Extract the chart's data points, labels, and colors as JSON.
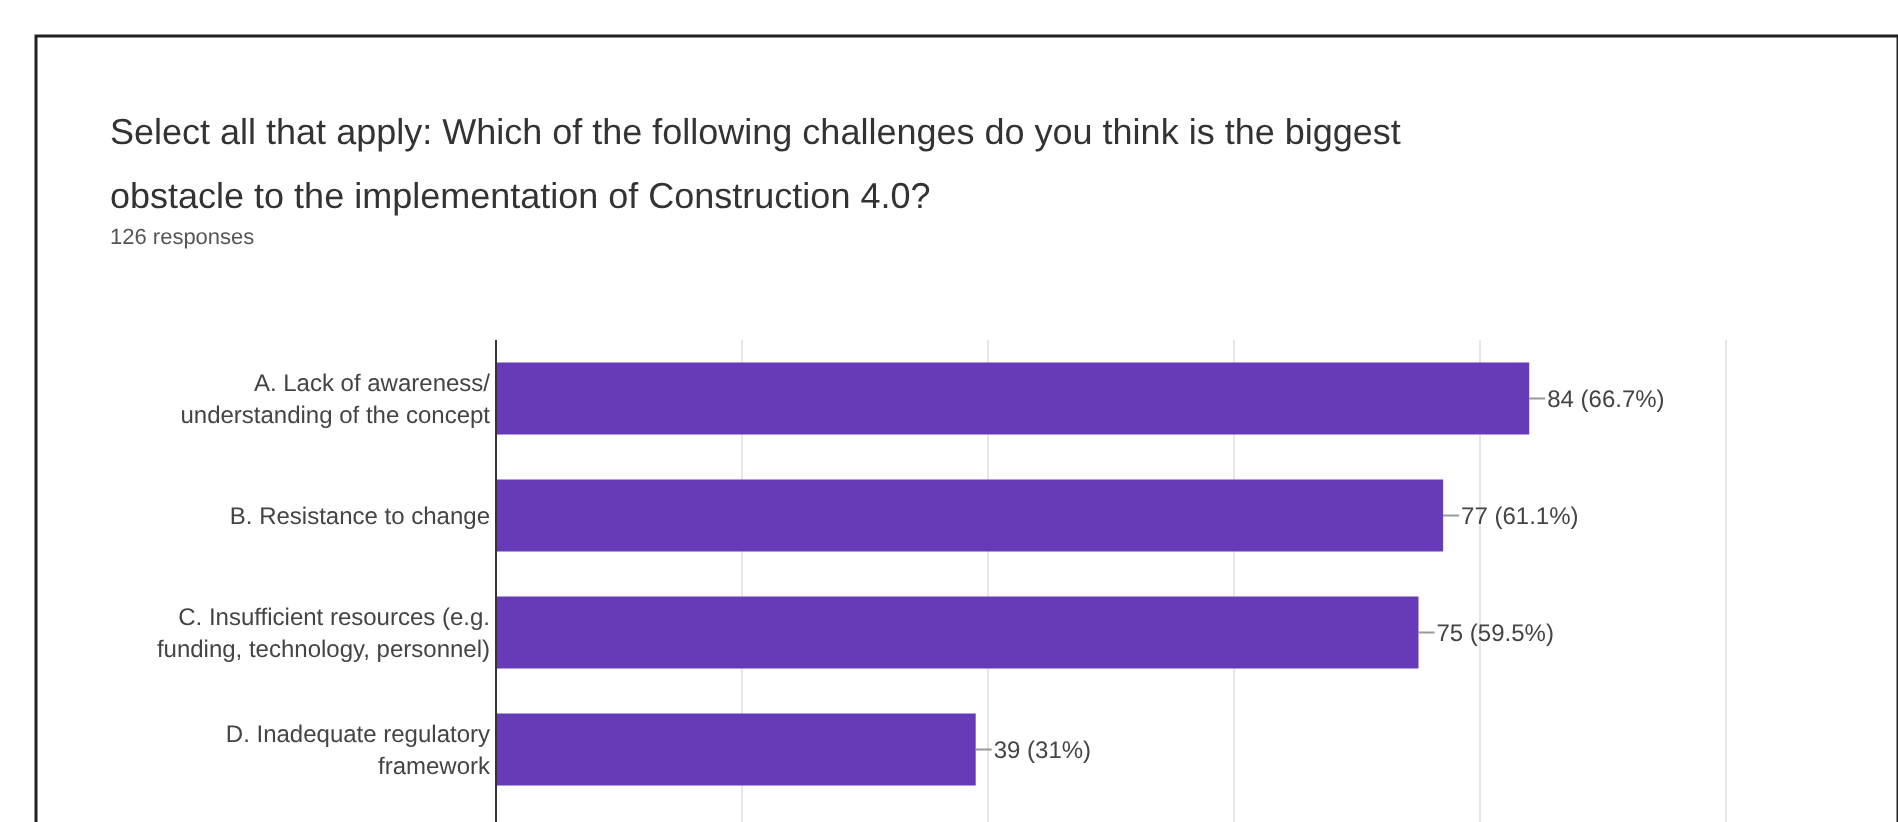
{
  "chart_data": {
    "type": "bar",
    "orientation": "horizontal",
    "title": "Select all that apply: Which of the following challenges do you think is the biggest obstacle to the implementation of Construction 4.0?",
    "subtitle": "126 responses",
    "categories": [
      "A. Lack of awareness/ understanding of the concept",
      "B. Resistance to change",
      "C. Insufficient resources (e.g. funding, technology, personnel)",
      "D. Inadequate regulatory framework"
    ],
    "values": [
      84,
      77,
      75,
      39
    ],
    "value_labels": [
      "84 (66.7%)",
      "77 (61.1%)",
      "75 (59.5%)",
      "39 (31%)"
    ],
    "color": "#673ab7",
    "xlim": [
      0,
      100
    ],
    "xticks": [
      {
        "value": 0,
        "label": null
      },
      {
        "value": 20,
        "label": null
      },
      {
        "value": 40,
        "label": null
      },
      {
        "value": 60,
        "label": null
      },
      {
        "value": 80,
        "label": null
      },
      {
        "value": 100,
        "label": null
      }
    ],
    "grid": "x"
  }
}
